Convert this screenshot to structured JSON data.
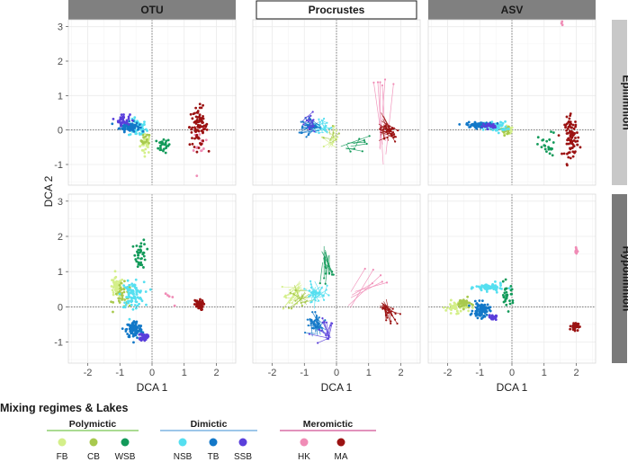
{
  "figure": {
    "legend_title": "Mixing regimes & Lakes"
  },
  "chart_data": {
    "type": "scatter",
    "panels": [
      "OTU",
      "Procrustes",
      "ASV"
    ],
    "layers": [
      "Epilimnion",
      "Hypolimnion"
    ],
    "xlabel": "DCA 1",
    "ylabel": "DCA 2",
    "xlim": [
      -2.6,
      2.6
    ],
    "ylim": [
      -1.6,
      3.2
    ],
    "xticks": [
      -2,
      -1,
      0,
      1,
      2
    ],
    "yticks": [
      -1,
      0,
      1,
      2,
      3
    ],
    "groups": [
      {
        "name": "Polymictic",
        "color": "#8dcf6f",
        "lakes": [
          {
            "name": "FB",
            "color": "#d4ef8a"
          },
          {
            "name": "CB",
            "color": "#a8c94e"
          },
          {
            "name": "WSB",
            "color": "#139a5a"
          }
        ]
      },
      {
        "name": "Dimictic",
        "color": "#7db4e2",
        "lakes": [
          {
            "name": "NSB",
            "color": "#55dff0"
          },
          {
            "name": "TB",
            "color": "#1378c8"
          },
          {
            "name": "SSB",
            "color": "#5a3fdb"
          }
        ]
      },
      {
        "name": "Meromictic",
        "color": "#d86fa6",
        "lakes": [
          {
            "name": "HK",
            "color": "#f08cb6"
          },
          {
            "name": "MA",
            "color": "#9b1212"
          }
        ]
      }
    ],
    "clusters": {
      "OTU": {
        "Epilimnion": [
          {
            "lake": "FB",
            "x": -0.2,
            "y": -0.4,
            "sx": 0.12,
            "sy": 0.2,
            "n": 30
          },
          {
            "lake": "CB",
            "x": -0.2,
            "y": -0.3,
            "sx": 0.1,
            "sy": 0.15,
            "n": 15
          },
          {
            "lake": "WSB",
            "x": 0.35,
            "y": -0.45,
            "sx": 0.15,
            "sy": 0.15,
            "n": 25
          },
          {
            "lake": "NSB",
            "x": -0.45,
            "y": 0.05,
            "sx": 0.2,
            "sy": 0.18,
            "n": 60
          },
          {
            "lake": "TB",
            "x": -0.7,
            "y": 0.1,
            "sx": 0.22,
            "sy": 0.1,
            "n": 90
          },
          {
            "lake": "SSB",
            "x": -0.9,
            "y": 0.3,
            "sx": 0.15,
            "sy": 0.12,
            "n": 35
          },
          {
            "lake": "HK",
            "x": 1.5,
            "y": -0.5,
            "sx": 0.15,
            "sy": 0.35,
            "n": 15
          },
          {
            "lake": "MA",
            "x": 1.45,
            "y": 0.1,
            "sx": 0.2,
            "sy": 0.4,
            "n": 90
          }
        ],
        "Hypolimnion": [
          {
            "lake": "FB",
            "x": -1.1,
            "y": 0.55,
            "sx": 0.15,
            "sy": 0.2,
            "n": 50
          },
          {
            "lake": "CB",
            "x": -0.9,
            "y": 0.3,
            "sx": 0.2,
            "sy": 0.25,
            "n": 40
          },
          {
            "lake": "WSB",
            "x": -0.35,
            "y": 1.5,
            "sx": 0.12,
            "sy": 0.3,
            "n": 40
          },
          {
            "lake": "NSB",
            "x": -0.6,
            "y": 0.35,
            "sx": 0.25,
            "sy": 0.25,
            "n": 90
          },
          {
            "lake": "TB",
            "x": -0.55,
            "y": -0.65,
            "sx": 0.18,
            "sy": 0.18,
            "n": 110
          },
          {
            "lake": "SSB",
            "x": -0.25,
            "y": -0.85,
            "sx": 0.08,
            "sy": 0.08,
            "n": 40
          },
          {
            "lake": "HK",
            "x": 0.5,
            "y": 0.1,
            "sx": 0.2,
            "sy": 0.3,
            "n": 5
          },
          {
            "lake": "MA",
            "x": 1.45,
            "y": 0.05,
            "sx": 0.1,
            "sy": 0.1,
            "n": 60
          }
        ]
      },
      "ASV": {
        "Epilimnion": [
          {
            "lake": "FB",
            "x": -0.15,
            "y": 0.0,
            "sx": 0.1,
            "sy": 0.1,
            "n": 25
          },
          {
            "lake": "CB",
            "x": -0.2,
            "y": 0.0,
            "sx": 0.1,
            "sy": 0.1,
            "n": 15
          },
          {
            "lake": "WSB",
            "x": 1.1,
            "y": -0.5,
            "sx": 0.2,
            "sy": 0.3,
            "n": 25
          },
          {
            "lake": "NSB",
            "x": -0.5,
            "y": 0.1,
            "sx": 0.25,
            "sy": 0.1,
            "n": 70
          },
          {
            "lake": "TB",
            "x": -1.0,
            "y": 0.15,
            "sx": 0.3,
            "sy": 0.05,
            "n": 90
          },
          {
            "lake": "SSB",
            "x": -0.7,
            "y": 0.12,
            "sx": 0.15,
            "sy": 0.05,
            "n": 25
          },
          {
            "lake": "HK",
            "x": 1.6,
            "y": 3.1,
            "sx": 0.05,
            "sy": 0.05,
            "n": 3
          },
          {
            "lake": "MA",
            "x": 1.85,
            "y": -0.2,
            "sx": 0.15,
            "sy": 0.4,
            "n": 90
          }
        ],
        "Hypolimnion": [
          {
            "lake": "FB",
            "x": -1.7,
            "y": 0.0,
            "sx": 0.25,
            "sy": 0.12,
            "n": 60
          },
          {
            "lake": "CB",
            "x": -1.5,
            "y": 0.1,
            "sx": 0.15,
            "sy": 0.1,
            "n": 35
          },
          {
            "lake": "WSB",
            "x": -0.15,
            "y": 0.3,
            "sx": 0.15,
            "sy": 0.25,
            "n": 30
          },
          {
            "lake": "NSB",
            "x": -0.7,
            "y": 0.55,
            "sx": 0.3,
            "sy": 0.08,
            "n": 70
          },
          {
            "lake": "TB",
            "x": -0.95,
            "y": -0.1,
            "sx": 0.18,
            "sy": 0.15,
            "n": 90
          },
          {
            "lake": "SSB",
            "x": -0.6,
            "y": -0.3,
            "sx": 0.08,
            "sy": 0.05,
            "n": 30
          },
          {
            "lake": "HK",
            "x": 2.0,
            "y": 1.6,
            "sx": 0.04,
            "sy": 0.08,
            "n": 12
          },
          {
            "lake": "MA",
            "x": 1.95,
            "y": -0.55,
            "sx": 0.08,
            "sy": 0.08,
            "n": 45
          }
        ]
      }
    }
  }
}
